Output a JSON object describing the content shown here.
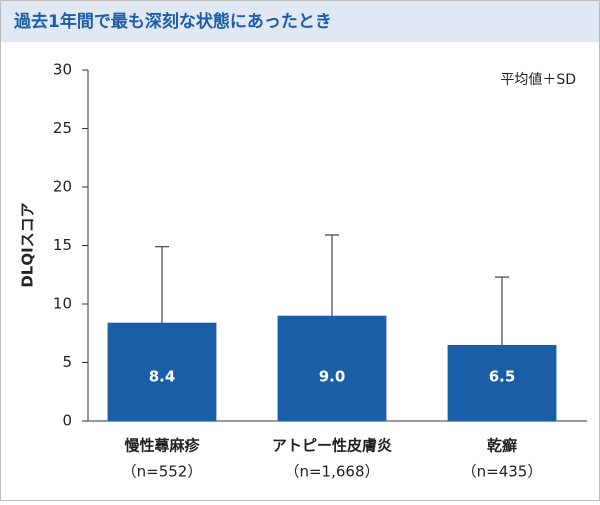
{
  "chart_data": {
    "type": "bar",
    "title": "過去1年間で最も深刻な状態にあったとき",
    "note": "平均値＋SD",
    "y_label": "DLQIスコア",
    "categories": [
      "慢性蕁麻疹",
      "アトピー性皮膚炎",
      "乾癬"
    ],
    "category_notes": [
      "（n=552）",
      "（n=1,668）",
      "（n=435）"
    ],
    "values": [
      8.4,
      9.0,
      6.5
    ],
    "value_labels": [
      "8.4",
      "9.0",
      "6.5"
    ],
    "errors": [
      6.5,
      6.9,
      5.8
    ],
    "color": "#1a5ea8",
    "error_color": "#444444",
    "ylim": [
      0,
      30
    ],
    "yticks": [
      0,
      5,
      10,
      15,
      20,
      25,
      30
    ]
  }
}
